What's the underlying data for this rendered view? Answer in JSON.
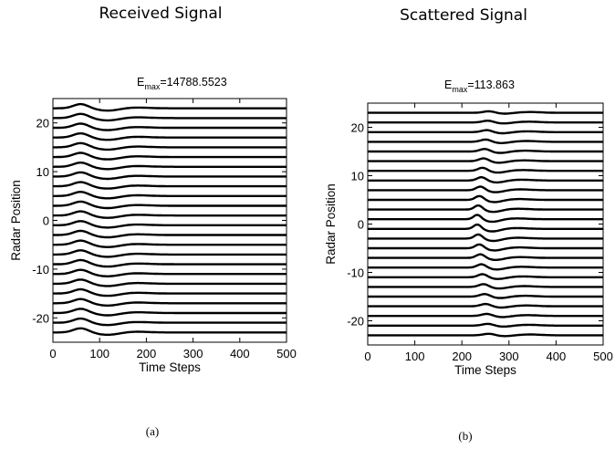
{
  "panels": [
    {
      "heading": "Received Signal",
      "caption": "(a)",
      "title_sym": "E",
      "title_sub": "max",
      "title_value": "=14788.5523"
    },
    {
      "heading": "Scattered Signal",
      "caption": "(b)",
      "title_sym": "E",
      "title_sub": "max",
      "title_value": "=113.863"
    }
  ],
  "chart_data": [
    {
      "type": "line",
      "title": "E_max=14788.5523",
      "xlabel": "Time Steps",
      "ylabel": "Radar Position",
      "xlim": [
        0,
        500
      ],
      "ylim": [
        -25,
        25
      ],
      "xticks": [
        0,
        100,
        200,
        300,
        400,
        500
      ],
      "yticks": [
        -20,
        -10,
        0,
        10,
        20
      ],
      "grid": false,
      "trace_offsets": [
        -23,
        -21,
        -19,
        -17,
        -15,
        -13,
        -11,
        -9,
        -7,
        -5,
        -3,
        -1,
        1,
        3,
        5,
        7,
        9,
        11,
        13,
        15,
        17,
        19,
        21,
        23
      ],
      "pulse": {
        "peak_time": 60,
        "peak_amplitude": 1.6,
        "trough_time": 118,
        "trough_amplitude": -0.9,
        "tail_time": 175,
        "tail_amplitude": 0.3
      },
      "line_color": "#000000"
    },
    {
      "type": "line",
      "title": "E_max=113.863",
      "xlabel": "Time Steps",
      "ylabel": "Radar Position",
      "xlim": [
        0,
        500
      ],
      "ylim": [
        -25,
        25
      ],
      "xticks": [
        0,
        100,
        200,
        300,
        400,
        500
      ],
      "yticks": [
        -20,
        -10,
        0,
        10,
        20
      ],
      "grid": false,
      "trace_offsets": [
        -23,
        -21,
        -19,
        -17,
        -15,
        -13,
        -11,
        -9,
        -7,
        -5,
        -3,
        -1,
        1,
        3,
        5,
        7,
        9,
        11,
        13,
        15,
        17,
        19,
        21,
        23
      ],
      "pulse": {
        "peak_time_center": 232,
        "peak_time_edge": 258,
        "center_amplitude": 1.8,
        "edge_amplitude": 0.6,
        "trough_lag": 32,
        "tail_time_center": 315,
        "tail_time_edge": 345
      },
      "line_color": "#000000"
    }
  ]
}
